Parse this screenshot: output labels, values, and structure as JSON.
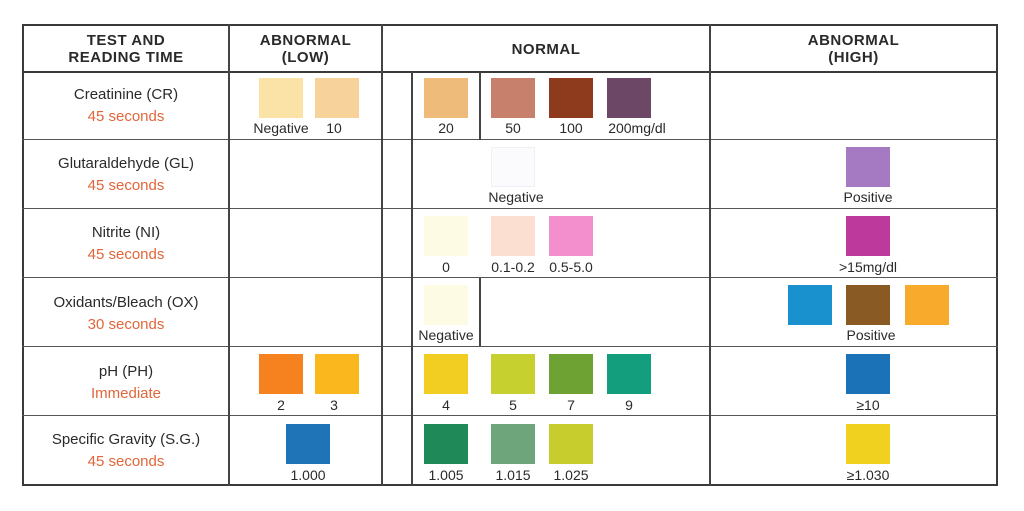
{
  "headers": {
    "test": [
      "TEST AND",
      "READING TIME"
    ],
    "low": [
      "ABNORMAL",
      "(LOW)"
    ],
    "normal": "NORMAL",
    "high": [
      "ABNORMAL",
      "(HIGH)"
    ]
  },
  "rows": [
    {
      "name": "Creatinine (CR)",
      "time": "45 seconds"
    },
    {
      "name": "Glutaraldehyde (GL)",
      "time": "45 seconds"
    },
    {
      "name": "Nitrite (NI)",
      "time": "45 seconds"
    },
    {
      "name": "Oxidants/Bleach (OX)",
      "time": "30 seconds"
    },
    {
      "name": "pH (PH)",
      "time": "Immediate"
    },
    {
      "name": "Specific Gravity (S.G.)",
      "time": "45 seconds"
    }
  ],
  "labels": {
    "cr": [
      "Negative",
      "10",
      "20",
      "50",
      "100",
      "200mg/dl"
    ],
    "gl": [
      "Negative",
      "Positive"
    ],
    "ni": [
      "0",
      "0.1-0.2",
      "0.5-5.0",
      ">15mg/dl"
    ],
    "ox": [
      "Negative",
      "Positive"
    ],
    "ph": [
      "2",
      "3",
      "4",
      "5",
      "7",
      "9",
      "≥10"
    ],
    "sg": [
      "1.000",
      "1.005",
      "1.015",
      "1.025",
      "≥1.030"
    ]
  },
  "colors": {
    "cr": [
      "#fbe3a8",
      "#f7d39b",
      "#efbb7a",
      "#c7806b",
      "#8e3a1c",
      "#6c4766"
    ],
    "gl": [
      "#fbfbfd",
      "#a57ac2"
    ],
    "ni": [
      "#fdfbe4",
      "#fbdfd0",
      "#f38fcc",
      "#bd3a9c"
    ],
    "ox": [
      "#fdfbe4",
      "#1891ce",
      "#8a5a25",
      "#f7aa2c"
    ],
    "ph": [
      "#f5821f",
      "#fbb81e",
      "#f2cd22",
      "#c6d12f",
      "#6ea232",
      "#139e7e",
      "#1b72b6"
    ],
    "sg": [
      "#1f74b8",
      "#1f8a57",
      "#6fa57a",
      "#c6cd2d",
      "#f1d11f"
    ]
  }
}
